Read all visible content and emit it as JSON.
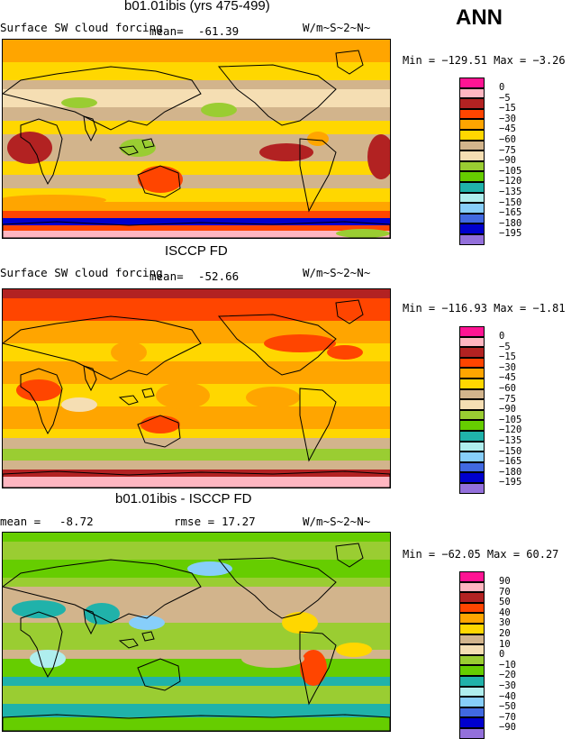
{
  "season": "ANN",
  "units": "W/m~S~2~N~",
  "panels": [
    {
      "title": "b01.01ibis (yrs 475-499)",
      "variable": "Surface SW cloud forcing",
      "mean_label": "mean=",
      "mean_value": "-61.39",
      "minmax": "Min = −129.51 Max =  −3.26",
      "palette": "abs"
    },
    {
      "title": "ISCCP FD",
      "variable": "Surface SW cloud forcing",
      "mean_label": "mean=",
      "mean_value": "-52.66",
      "minmax": "Min = −116.93 Max =  −1.81",
      "palette": "abs"
    },
    {
      "title": "b01.01ibis - ISCCP FD",
      "mean_label": "mean =",
      "mean_value": "-8.72",
      "rmse_label": "rmse =",
      "rmse_value": "17.27",
      "minmax": "Min = −62.05 Max =  60.27",
      "palette": "diff"
    }
  ],
  "chart_data": [
    {
      "type": "heatmap",
      "title": "b01.01ibis (yrs 475-499)",
      "variable": "Surface SW cloud forcing",
      "units": "W/m~S~2~N~",
      "mean": -61.39,
      "min": -129.51,
      "max": -3.26,
      "contour_levels": [
        0,
        -5,
        -15,
        -30,
        -45,
        -60,
        -75,
        -90,
        -105,
        -120,
        -135,
        -150,
        -165,
        -180,
        -195
      ],
      "colors": [
        "#ff1493",
        "#ffb6c1",
        "#b22222",
        "#ff4500",
        "#ffa500",
        "#ffd700",
        "#d2b48c",
        "#f5deb3",
        "#9acd32",
        "#66cd00",
        "#20b2aa",
        "#afeeee",
        "#87cefa",
        "#4169e1",
        "#0000cd",
        "#9370db"
      ]
    },
    {
      "type": "heatmap",
      "title": "ISCCP FD",
      "variable": "Surface SW cloud forcing",
      "units": "W/m~S~2~N~",
      "mean": -52.66,
      "min": -116.93,
      "max": -1.81,
      "contour_levels": [
        0,
        -5,
        -15,
        -30,
        -45,
        -60,
        -75,
        -90,
        -105,
        -120,
        -135,
        -150,
        -165,
        -180,
        -195
      ],
      "colors": [
        "#ff1493",
        "#ffb6c1",
        "#b22222",
        "#ff4500",
        "#ffa500",
        "#ffd700",
        "#d2b48c",
        "#f5deb3",
        "#9acd32",
        "#66cd00",
        "#20b2aa",
        "#afeeee",
        "#87cefa",
        "#4169e1",
        "#0000cd",
        "#9370db"
      ]
    },
    {
      "type": "heatmap",
      "title": "b01.01ibis - ISCCP FD",
      "units": "W/m~S~2~N~",
      "mean": -8.72,
      "rmse": 17.27,
      "min": -62.05,
      "max": 60.27,
      "contour_levels": [
        90,
        70,
        50,
        40,
        30,
        20,
        10,
        0,
        -10,
        -20,
        -30,
        -40,
        -50,
        -70,
        -90
      ],
      "colors": [
        "#ff1493",
        "#ffb6c1",
        "#b22222",
        "#ff4500",
        "#ffa500",
        "#ffd700",
        "#d2b48c",
        "#f5deb3",
        "#9acd32",
        "#66cd00",
        "#20b2aa",
        "#afeeee",
        "#87cefa",
        "#4169e1",
        "#0000cd",
        "#9370db"
      ]
    }
  ],
  "legend_palette": [
    "#ff1493",
    "#ffb6c1",
    "#b22222",
    "#ff4500",
    "#ffa500",
    "#ffd700",
    "#d2b48c",
    "#f5deb3",
    "#9acd32",
    "#66cd00",
    "#20b2aa",
    "#afeeee",
    "#87cefa",
    "#4169e1",
    "#0000cd",
    "#9370db"
  ]
}
